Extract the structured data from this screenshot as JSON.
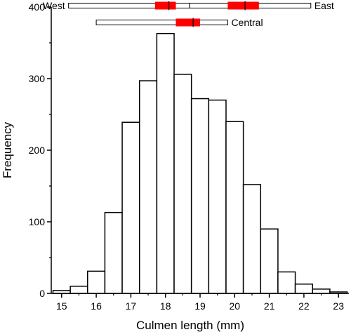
{
  "chart_data": {
    "type": "bar",
    "xlabel": "Culmen length (mm)",
    "ylabel": "Frequency",
    "x_ticks": [
      "15",
      "16",
      "17",
      "18",
      "19",
      "20",
      "21",
      "22",
      "23"
    ],
    "y_ticks": [
      "0",
      "100",
      "200",
      "300",
      "400"
    ],
    "xlim": [
      14.7,
      23.3
    ],
    "ylim": [
      0,
      400
    ],
    "bin_width": 0.5,
    "bins": [
      {
        "start": 14.75,
        "value": 4
      },
      {
        "start": 15.25,
        "value": 10
      },
      {
        "start": 15.75,
        "value": 31
      },
      {
        "start": 16.25,
        "value": 113
      },
      {
        "start": 16.75,
        "value": 239
      },
      {
        "start": 17.25,
        "value": 297
      },
      {
        "start": 17.75,
        "value": 363
      },
      {
        "start": 18.25,
        "value": 306
      },
      {
        "start": 18.75,
        "value": 272
      },
      {
        "start": 19.25,
        "value": 270
      },
      {
        "start": 19.75,
        "value": 240
      },
      {
        "start": 20.25,
        "value": 152
      },
      {
        "start": 20.75,
        "value": 90
      },
      {
        "start": 21.25,
        "value": 30
      },
      {
        "start": 21.75,
        "value": 13
      },
      {
        "start": 22.25,
        "value": 6
      },
      {
        "start": 22.75,
        "value": 2
      }
    ],
    "grid": false,
    "bar_fill": "#ffffff",
    "bar_stroke": "#000000",
    "boxplots": [
      {
        "label": "West",
        "label_side": "left",
        "range": [
          15.2,
          18.7
        ],
        "box": [
          17.7,
          18.3
        ],
        "median": 18.1
      },
      {
        "label": "East",
        "label_side": "right",
        "range": [
          18.7,
          22.2
        ],
        "box": [
          19.8,
          20.7
        ],
        "median": 20.3
      },
      {
        "label": "Central",
        "label_side": "right",
        "range": [
          16.0,
          19.8
        ],
        "box": [
          18.3,
          19.0
        ],
        "median": 18.8
      }
    ],
    "box_color": "#ff0000"
  }
}
